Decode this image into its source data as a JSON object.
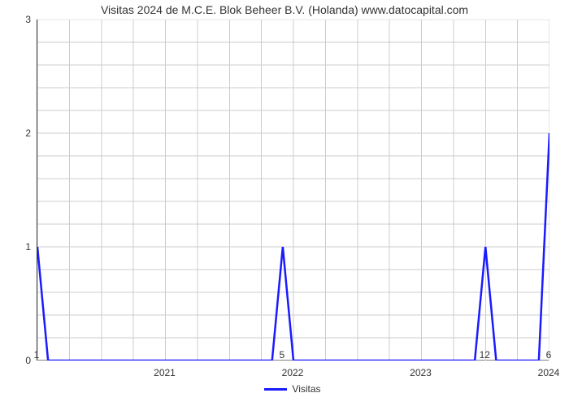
{
  "chart": {
    "type": "line",
    "title": "Visitas 2024 de M.C.E. Blok Beheer B.V. (Holanda) www.datocapital.com",
    "title_fontsize": 14,
    "title_color": "#333333",
    "background_color": "#ffffff",
    "grid_color": "#cccccc",
    "axis_color": "#333333",
    "line_color": "#1a1aff",
    "line_width": 2.5,
    "xlim": [
      0,
      48
    ],
    "ylim": [
      0,
      3
    ],
    "yticks": [
      0,
      1,
      2,
      3
    ],
    "xaxis_year_labels": [
      {
        "label": "2021",
        "x": 12
      },
      {
        "label": "2022",
        "x": 24
      },
      {
        "label": "2023",
        "x": 36
      },
      {
        "label": "2024",
        "x": 48
      }
    ],
    "xaxis_extra_labels": [
      {
        "label": "1",
        "x": 0
      },
      {
        "label": "5",
        "x": 23
      },
      {
        "label": "12",
        "x": 42
      },
      {
        "label": "6",
        "x": 48
      }
    ],
    "grid_vlines_x": [
      0,
      3,
      6,
      9,
      12,
      15,
      18,
      21,
      24,
      27,
      30,
      33,
      36,
      39,
      42,
      45,
      48
    ],
    "grid_hlines_step": 0.2,
    "series": {
      "name": "Visitas",
      "points": [
        [
          0,
          1.0
        ],
        [
          1,
          0.0
        ],
        [
          22,
          0.0
        ],
        [
          23,
          1.0
        ],
        [
          24,
          0.0
        ],
        [
          41,
          0.0
        ],
        [
          42,
          1.0
        ],
        [
          43,
          0.0
        ],
        [
          47,
          0.0
        ],
        [
          48,
          2.0
        ]
      ]
    },
    "legend": {
      "label": "Visitas",
      "color": "#1a1aff"
    }
  }
}
